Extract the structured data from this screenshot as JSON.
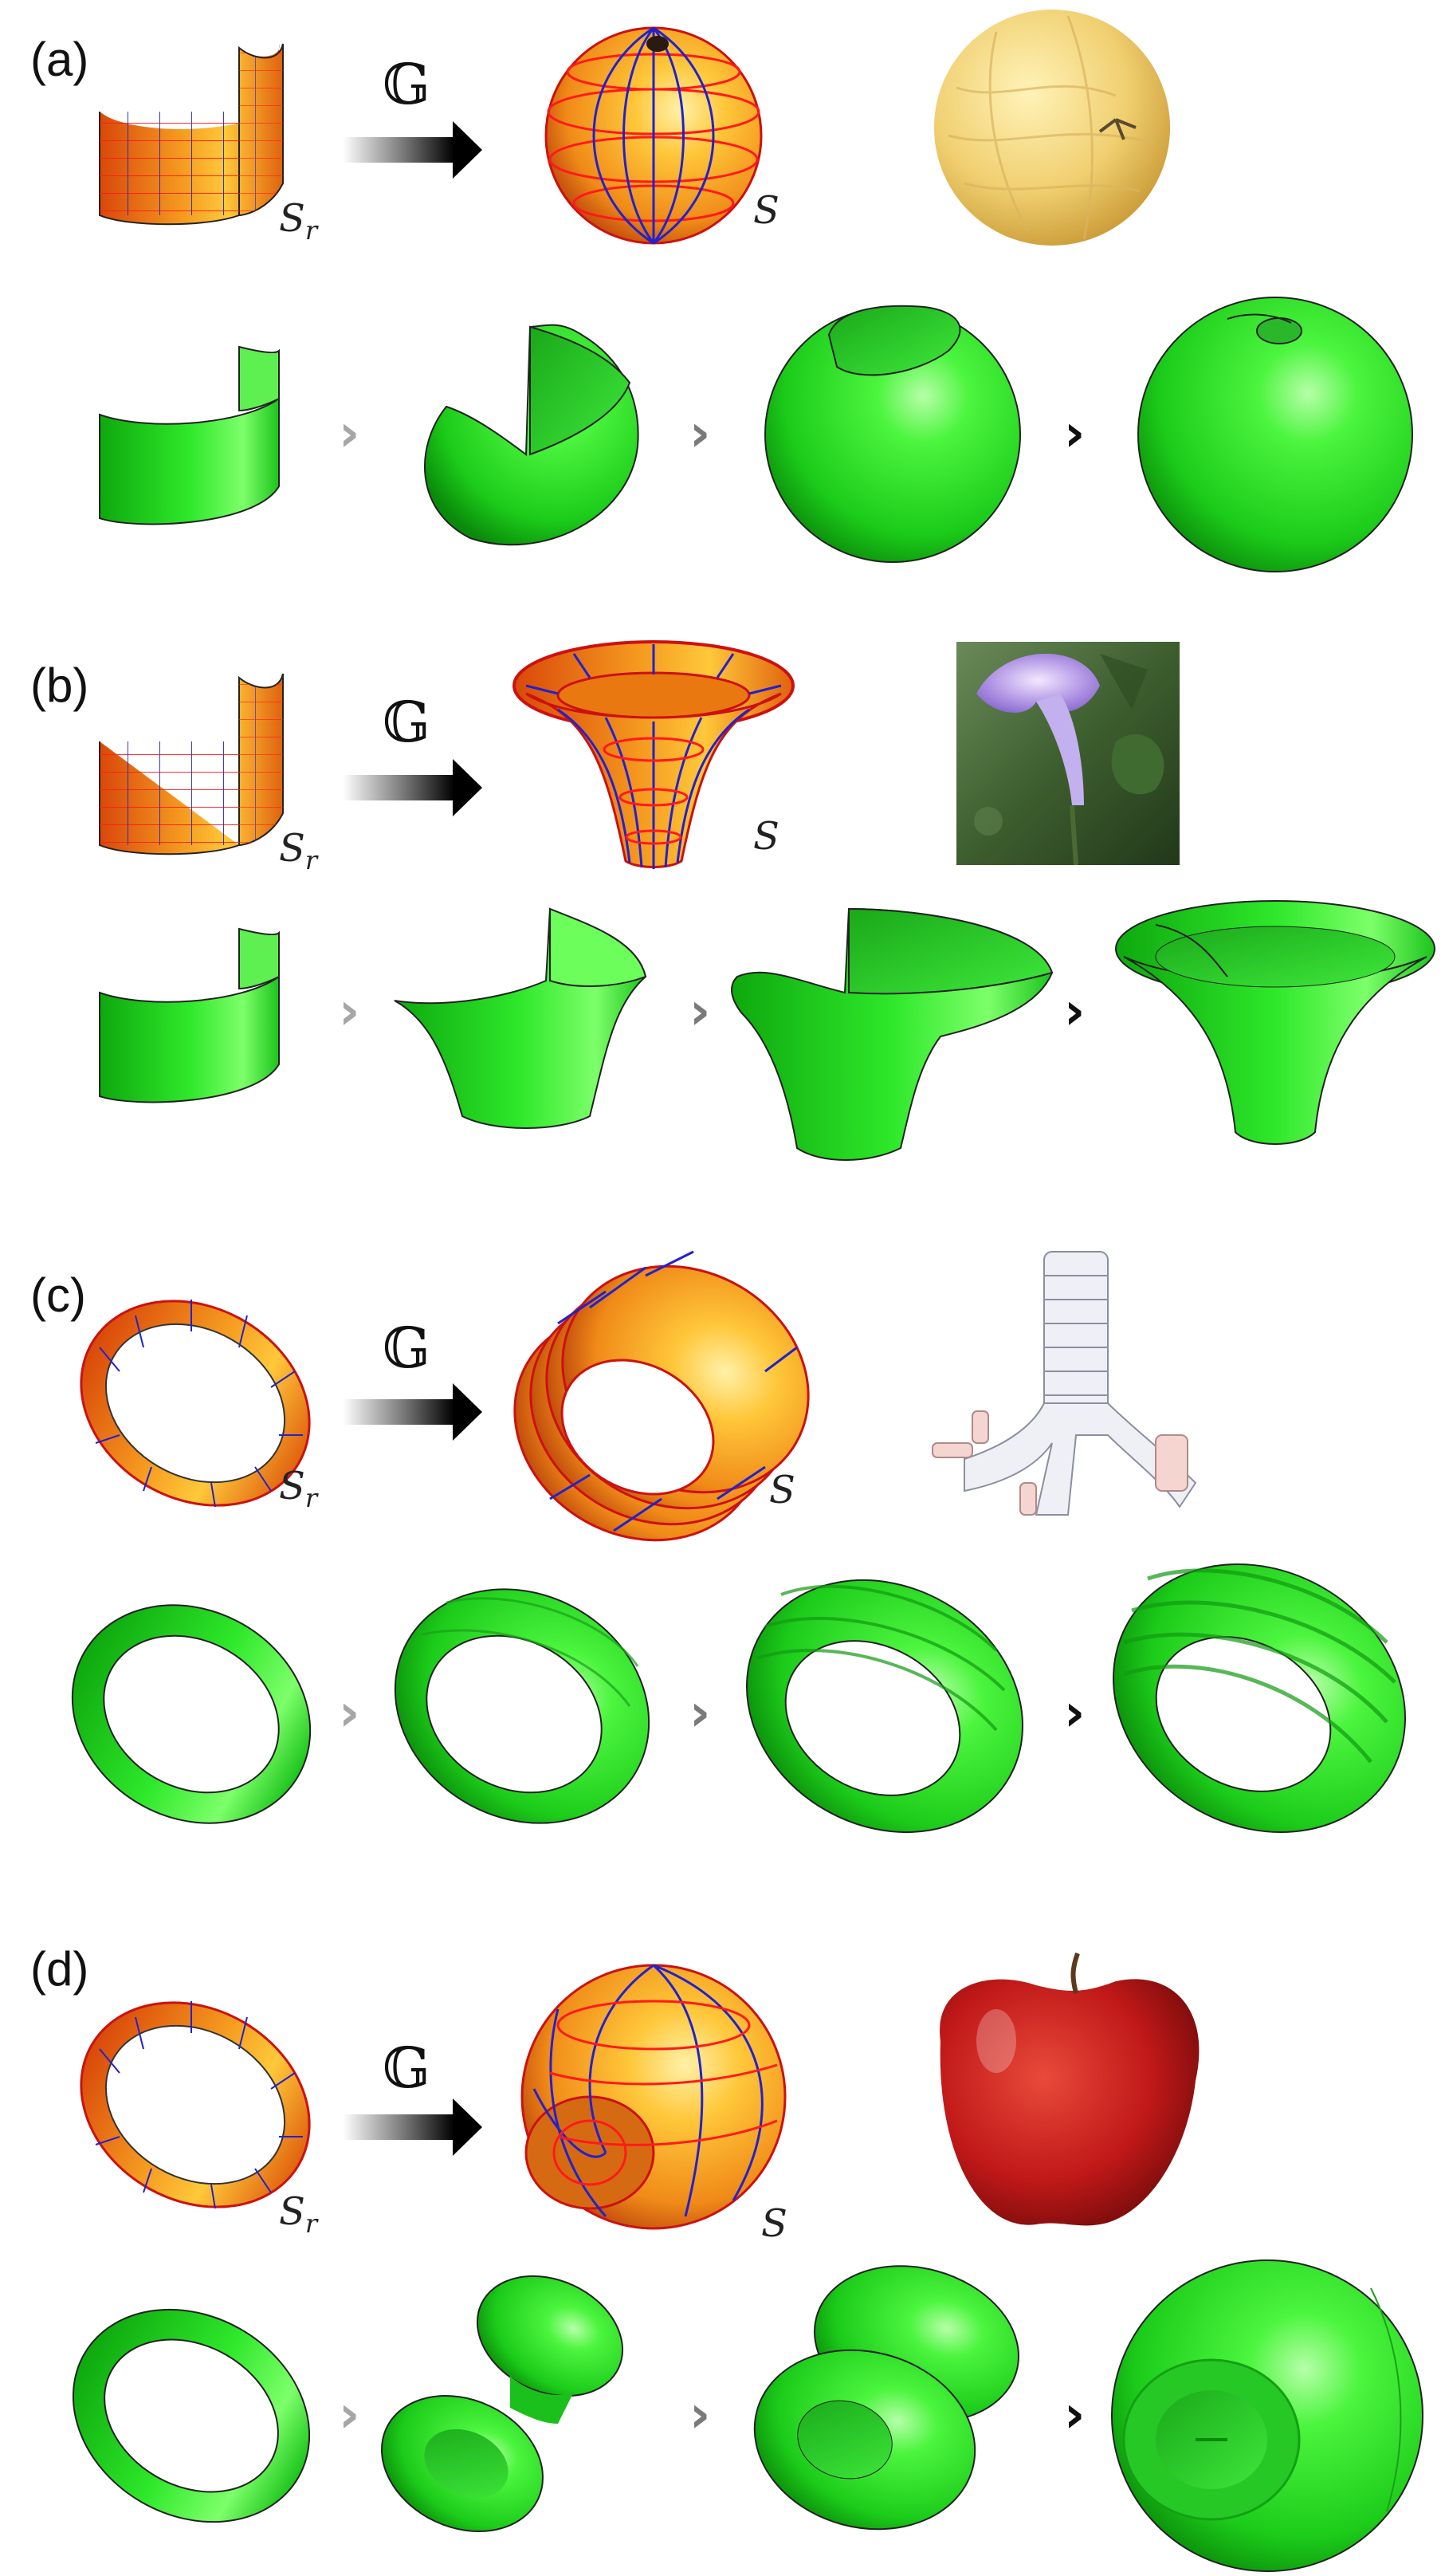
{
  "panels": [
    {
      "label": "(a)",
      "operator": "𝔾",
      "source": "S",
      "source_sub": "r",
      "target": "S"
    },
    {
      "label": "(b)",
      "operator": "𝔾",
      "source": "S",
      "source_sub": "r",
      "target": "S"
    },
    {
      "label": "(c)",
      "operator": "𝔾",
      "source": "S",
      "source_sub": "r",
      "target": "S"
    },
    {
      "label": "(d)",
      "operator": "𝔾",
      "source": "S",
      "source_sub": "r",
      "target": "S"
    }
  ],
  "step_chevron": "›",
  "colors": {
    "grid_orange_light": "#ffd23a",
    "grid_orange_dark": "#e35a0a",
    "grid_line_red": "#ff1a1a",
    "grid_line_blue": "#2222cc",
    "green_light": "#6bff5a",
    "green_mid": "#22e01a",
    "green_dark": "#0a9a0a",
    "chevron_light": "#a6a6a6",
    "chevron_mid": "#7a7a7a",
    "chevron_dark": "#111111"
  },
  "icons": {
    "a": "melon-photo",
    "b": "morning-glory-flower-photo",
    "c": "trachea-bronchi-illustration",
    "d": "red-apple-photo"
  }
}
